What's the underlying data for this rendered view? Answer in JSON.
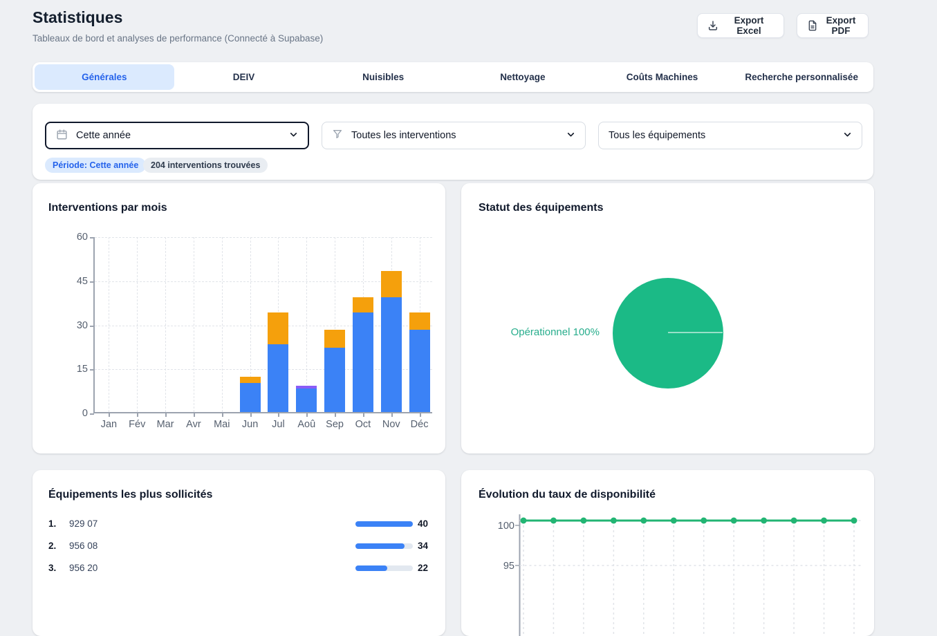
{
  "header": {
    "title": "Statistiques",
    "subtitle": "Tableaux de bord et analyses de performance (Connecté à Supabase)",
    "export_excel_label": "Export Excel",
    "export_pdf_label": "Export PDF"
  },
  "tabs": [
    {
      "label": "Générales",
      "active": true
    },
    {
      "label": "DEIV",
      "active": false
    },
    {
      "label": "Nuisibles",
      "active": false
    },
    {
      "label": "Nettoyage",
      "active": false
    },
    {
      "label": "Coûts Machines",
      "active": false
    },
    {
      "label": "Recherche personnalisée",
      "active": false
    }
  ],
  "filters": {
    "period": {
      "value": "Cette année",
      "icon": "calendar-icon",
      "focused": true
    },
    "intervention": {
      "value": "Toutes les interventions",
      "icon": "filter-icon"
    },
    "equipment": {
      "value": "Tous les équipements"
    },
    "badges": [
      {
        "label": "Période: Cette année",
        "style": "blue"
      },
      {
        "label": "204 interventions trouvées",
        "style": "gray"
      }
    ]
  },
  "colors": {
    "accent_blue": "#2563eb",
    "bar_blue": "#3b82f6",
    "bar_orange": "#f5a00c",
    "bar_purple": "#8b5cf6",
    "pie_green": "#1bba86",
    "line_green": "#22b573",
    "pie_label_green": "#27ad8c",
    "track_gray": "#e2e8f0"
  },
  "chart_data": [
    {
      "id": "interventions_par_mois",
      "type": "bar",
      "stacked": true,
      "title": "Interventions par mois",
      "categories": [
        "Jan",
        "Fév",
        "Mar",
        "Avr",
        "Mai",
        "Jun",
        "Jul",
        "Aoû",
        "Sep",
        "Oct",
        "Nov",
        "Déc"
      ],
      "series": [
        {
          "name": "serie-bleue",
          "color": "#3b82f6",
          "values": [
            0,
            0,
            0,
            0,
            0,
            10,
            23,
            8,
            22,
            34,
            39,
            28
          ]
        },
        {
          "name": "serie-orange",
          "color": "#f5a00c",
          "values": [
            0,
            0,
            0,
            0,
            0,
            2,
            11,
            0,
            6,
            5,
            9,
            6
          ]
        },
        {
          "name": "serie-violette",
          "color": "#8b5cf6",
          "values": [
            0,
            0,
            0,
            0,
            0,
            0,
            0,
            1,
            0,
            0,
            0,
            0
          ]
        }
      ],
      "totals": [
        0,
        0,
        0,
        0,
        0,
        12,
        34,
        9,
        28,
        39,
        48,
        34
      ],
      "ylim": [
        0,
        60
      ],
      "yticks": [
        0,
        15,
        30,
        45,
        60
      ],
      "grid": true,
      "legend": "none"
    },
    {
      "id": "statut_equipements",
      "type": "pie",
      "title": "Statut des équipements",
      "slices": [
        {
          "label": "Opérationnel",
          "value": 100,
          "color": "#1bba86",
          "display": "Opérationnel 100%"
        }
      ],
      "legend": "none"
    },
    {
      "id": "equipements_sollicites",
      "type": "table",
      "title": "Équipements les plus sollicités",
      "rows": [
        {
          "rank": "1.",
          "name": "929 07",
          "value": 40
        },
        {
          "rank": "2.",
          "name": "956 08",
          "value": 34
        },
        {
          "rank": "3.",
          "name": "956 20",
          "value": 22
        }
      ],
      "max": 40
    },
    {
      "id": "taux_disponibilite",
      "type": "line",
      "title": "Évolution du taux de disponibilité",
      "point_count": 12,
      "values": [
        100,
        100,
        100,
        100,
        100,
        100,
        100,
        100,
        100,
        100,
        100,
        100
      ],
      "yticks_visible": [
        100,
        95
      ],
      "color": "#22b573",
      "grid": true
    }
  ]
}
